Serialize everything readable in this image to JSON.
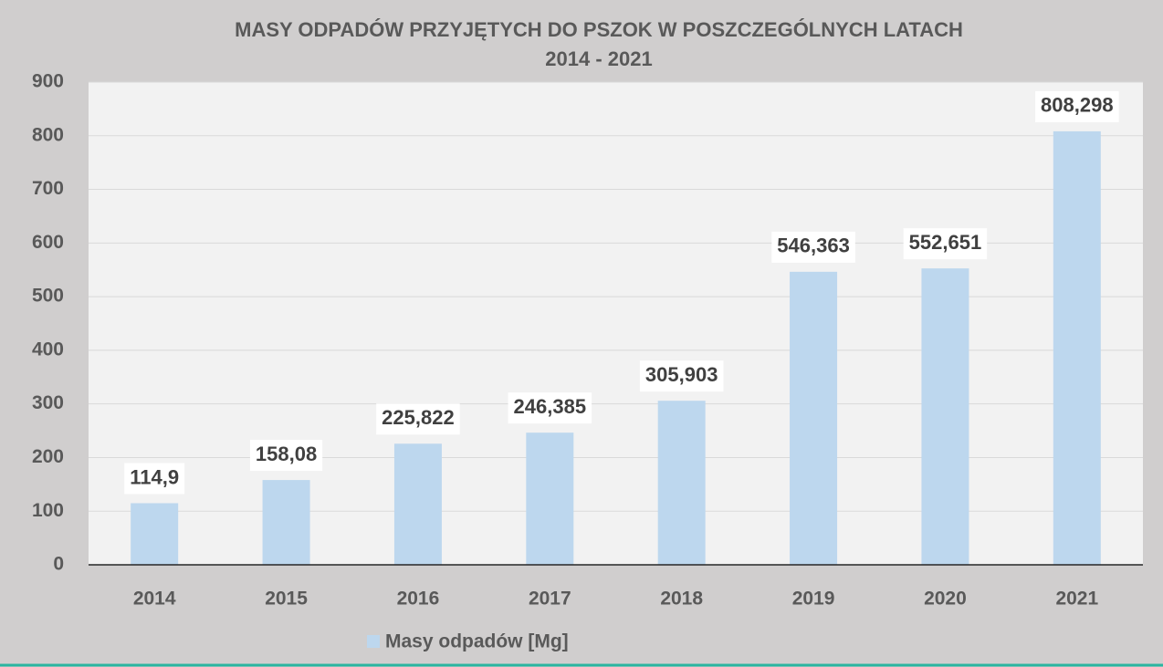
{
  "chart_data": {
    "type": "bar",
    "title": "MASY ODPADÓW PRZYJĘTYCH DO PSZOK W POSZCZEGÓLNYCH LATACH",
    "subtitle": "2014 - 2021",
    "categories": [
      "2014",
      "2015",
      "2016",
      "2017",
      "2018",
      "2019",
      "2020",
      "2021"
    ],
    "series": [
      {
        "name": "Masy odpadów [Mg]",
        "color": "#bdd7ee",
        "values": [
          114.9,
          158.08,
          225.822,
          246.385,
          305.903,
          546.363,
          552.651,
          808.298
        ],
        "value_labels": [
          "114,9",
          "158,08",
          "225,822",
          "246,385",
          "305,903",
          "546,363",
          "552,651",
          "808,298"
        ]
      }
    ],
    "ylim": [
      0,
      900
    ],
    "yticks": [
      0,
      100,
      200,
      300,
      400,
      500,
      600,
      700,
      800,
      900
    ],
    "grid": true,
    "legend": "bottom"
  }
}
